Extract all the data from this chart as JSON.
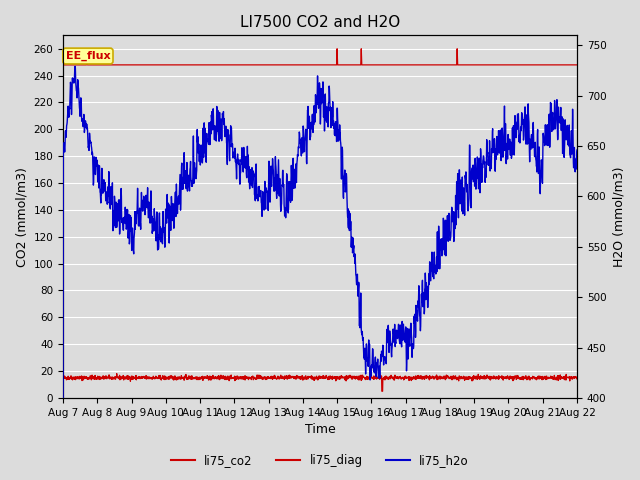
{
  "title": "LI7500 CO2 and H2O",
  "xlabel": "Time",
  "ylabel_left": "CO2 (mmol/m3)",
  "ylabel_right": "H2O (mmol/m3)",
  "ylim_left": [
    0,
    270
  ],
  "ylim_right": [
    400,
    760
  ],
  "yticks_left": [
    0,
    20,
    40,
    60,
    80,
    100,
    120,
    140,
    160,
    180,
    200,
    220,
    240,
    260
  ],
  "yticks_right": [
    400,
    450,
    500,
    550,
    600,
    650,
    700,
    750
  ],
  "bg_color": "#dcdcdc",
  "plot_bg_color": "#dcdcdc",
  "grid_color": "#ffffff",
  "ee_flux_label": "EE_flux",
  "ee_flux_bg": "#ffff99",
  "ee_flux_border": "#ccaa00",
  "co2_color": "#cc0000",
  "diag_color": "#cc0000",
  "h2o_color": "#0000cc",
  "legend_items": [
    "li75_co2",
    "li75_diag",
    "li75_h2o"
  ],
  "xtick_labels": [
    "Aug 7",
    "Aug 8",
    "Aug 9",
    "Aug 10",
    "Aug 11",
    "Aug 12",
    "Aug 13",
    "Aug 14",
    "Aug 15",
    "Aug 16",
    "Aug 17",
    "Aug 18",
    "Aug 19",
    "Aug 20",
    "Aug 21",
    "Aug 22"
  ],
  "title_fontsize": 11,
  "axis_label_fontsize": 9,
  "tick_fontsize": 7.5
}
